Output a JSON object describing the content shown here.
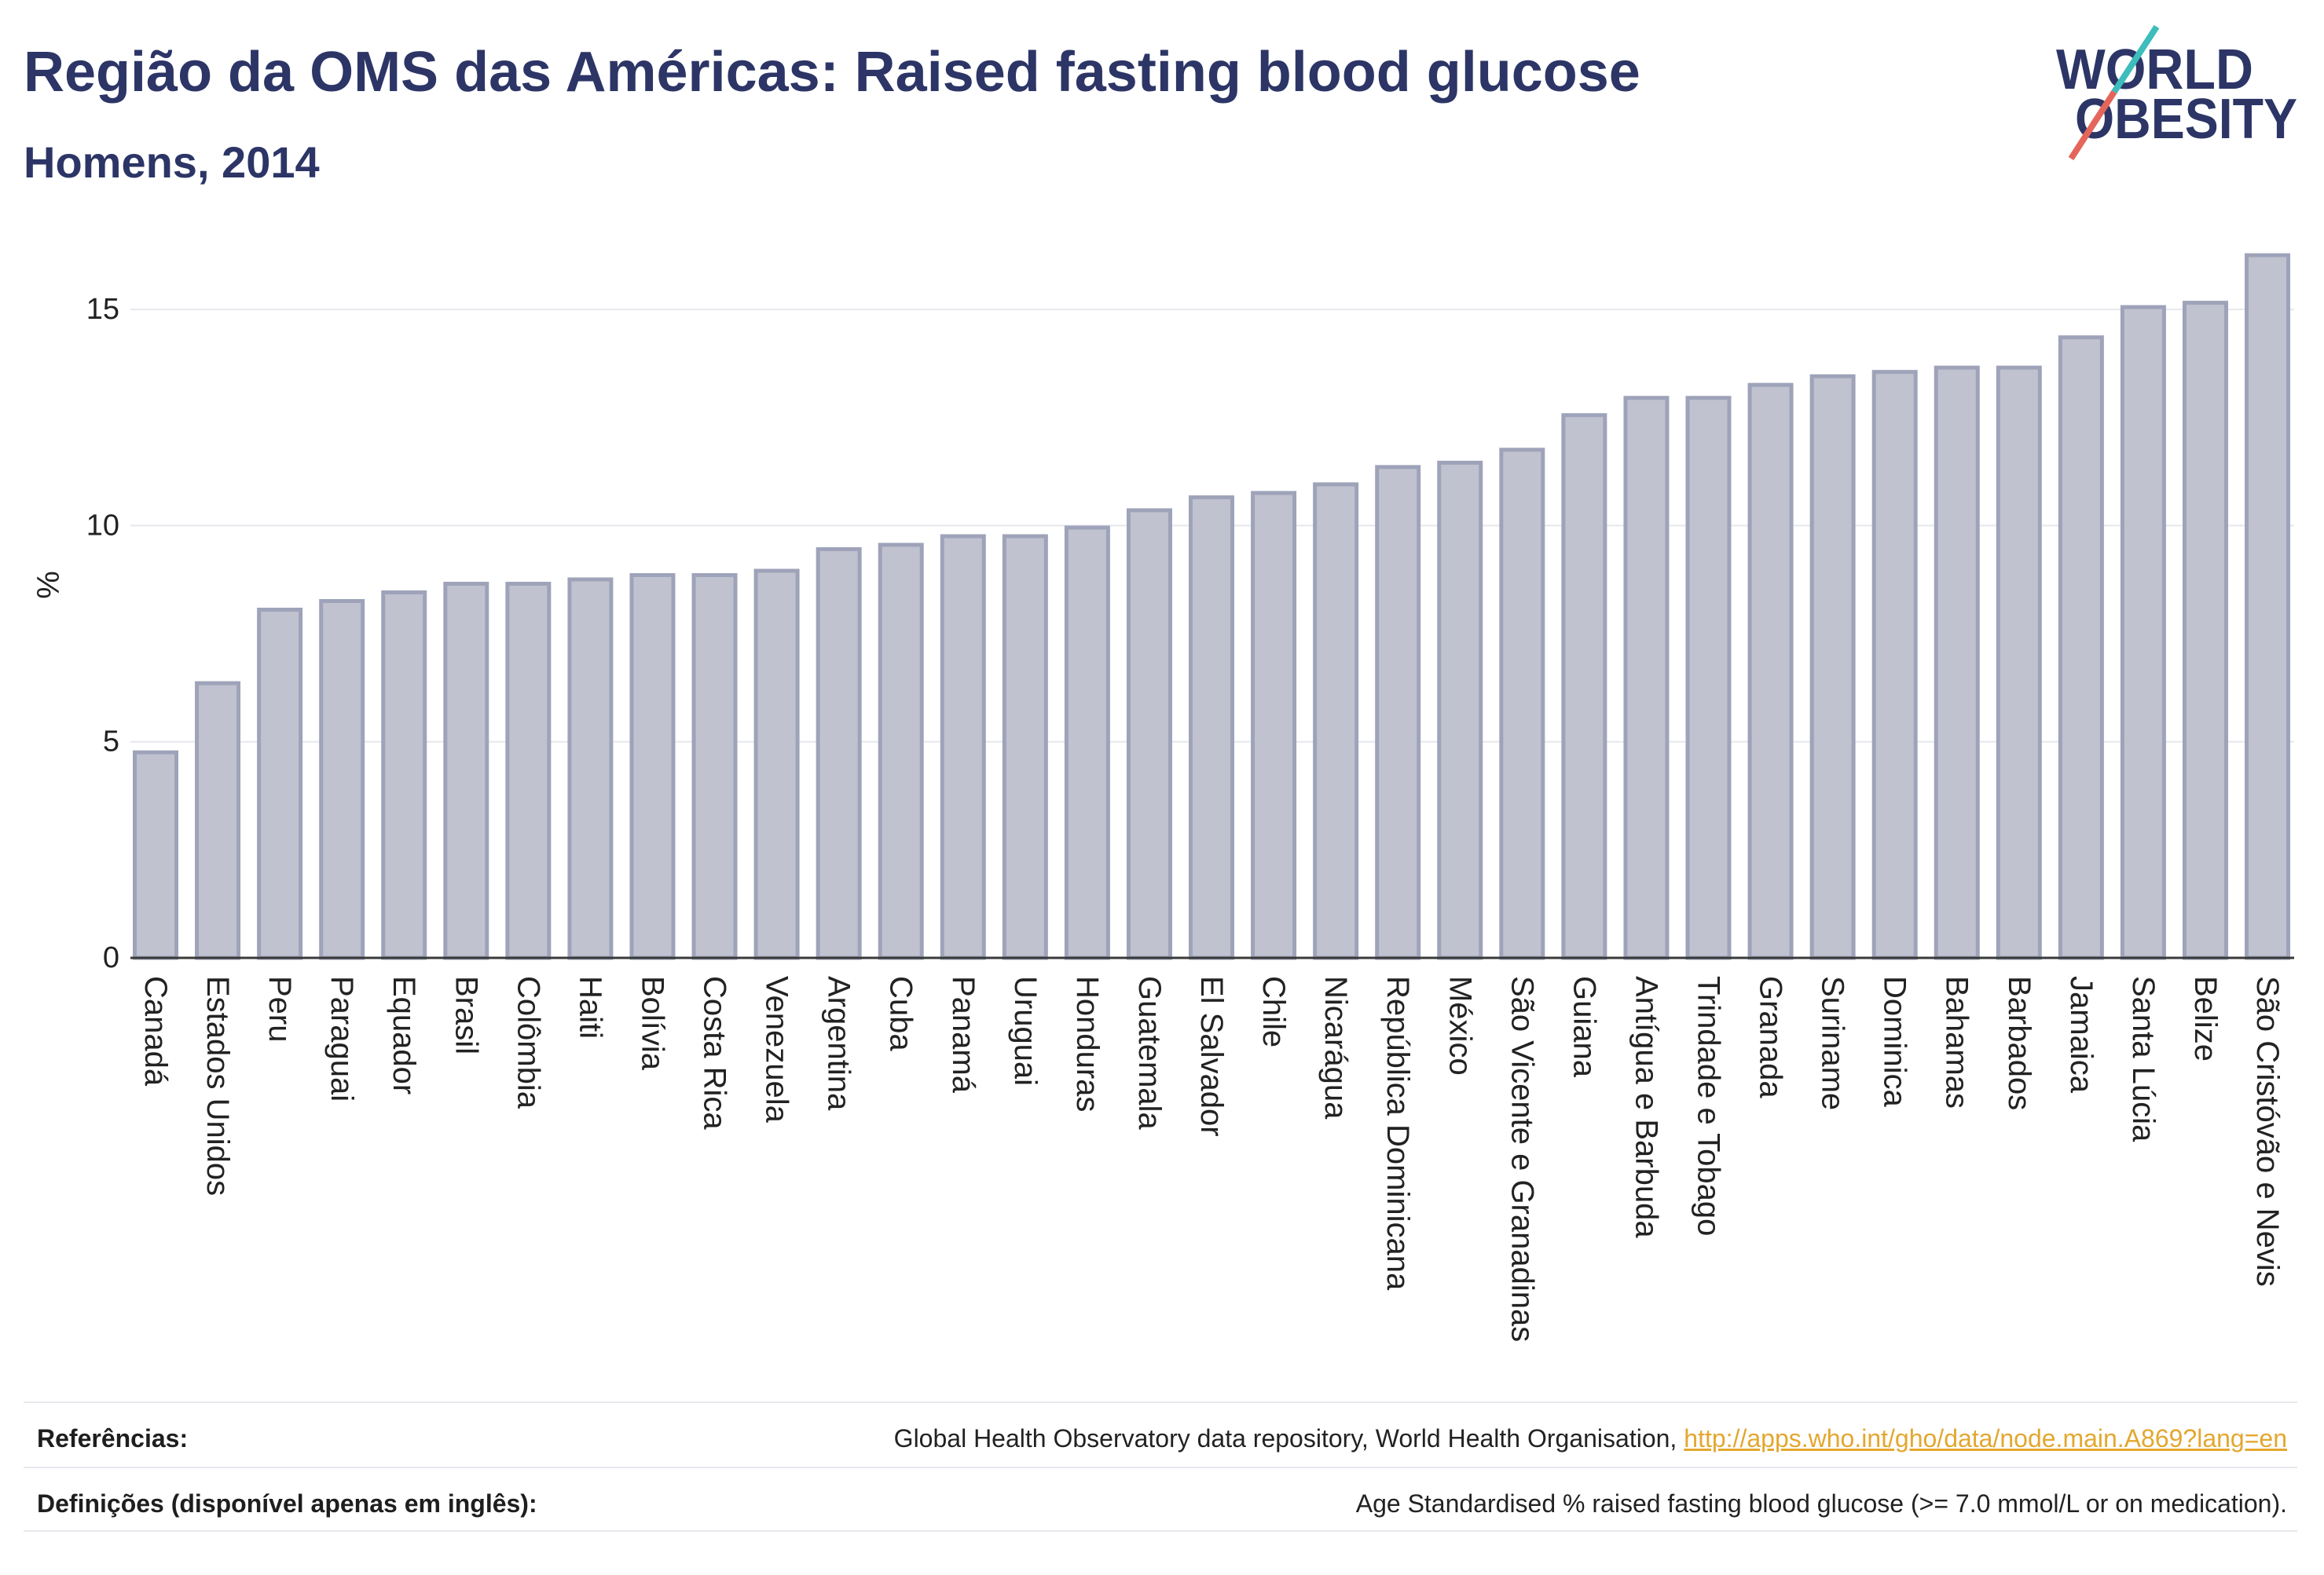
{
  "logo": {
    "line1": "WORLD",
    "line2": "OBESITY",
    "colors": {
      "text": "#2c3566",
      "slash_top": "#3dbdbb",
      "slash_bottom": "#e4665a"
    }
  },
  "chart_data": {
    "type": "bar",
    "title": "Região da OMS das Américas: Raised fasting blood glucose",
    "subtitle": "Homens, 2014",
    "xlabel": "",
    "ylabel": "%",
    "ylim": [
      0,
      17
    ],
    "yticks": [
      0,
      5,
      10,
      15
    ],
    "grid": true,
    "categories": [
      "Canadá",
      "Estados Unidos",
      "Peru",
      "Paraguai",
      "Equador",
      "Brasil",
      "Colômbia",
      "Haiti",
      "Bolívia",
      "Costa Rica",
      "Venezuela",
      "Argentina",
      "Cuba",
      "Panamá",
      "Uruguai",
      "Honduras",
      "Guatemala",
      "El Salvador",
      "Chile",
      "Nicarágua",
      "República Dominicana",
      "México",
      "São Vicente e Granadinas",
      "Guiana",
      "Antígua e Barbuda",
      "Trindade e Tobago",
      "Granada",
      "Suriname",
      "Dominica",
      "Bahamas",
      "Barbados",
      "Jamaica",
      "Santa Lúcia",
      "Belize",
      "São Cristóvão e Nevis"
    ],
    "values": [
      4.8,
      6.4,
      8.1,
      8.3,
      8.5,
      8.7,
      8.7,
      8.8,
      8.9,
      8.9,
      9.0,
      9.5,
      9.6,
      9.8,
      9.8,
      10.0,
      10.4,
      10.7,
      10.8,
      11.0,
      11.4,
      11.5,
      11.8,
      12.6,
      13.0,
      13.0,
      13.3,
      13.5,
      13.6,
      13.7,
      13.7,
      14.4,
      15.1,
      15.2,
      16.3
    ],
    "colors": {
      "bar_fill": "#c0c2cf",
      "bar_stroke": "#9ea3b9",
      "axis": "#3a3a3a",
      "grid": "#e7e8ee",
      "title": "#2c3566"
    }
  },
  "footer": {
    "references_label": "Referências:",
    "references_text": "Global Health Observatory data repository, World Health Organisation,",
    "references_link": "http://apps.who.int/gho/data/node.main.A869?lang=en",
    "definitions_label": "Definições (disponível apenas em inglês):",
    "definitions_text": "Age Standardised % raised fasting blood glucose (>= 7.0 mmol/L or on medication).",
    "link_color": "#e3a72f"
  }
}
